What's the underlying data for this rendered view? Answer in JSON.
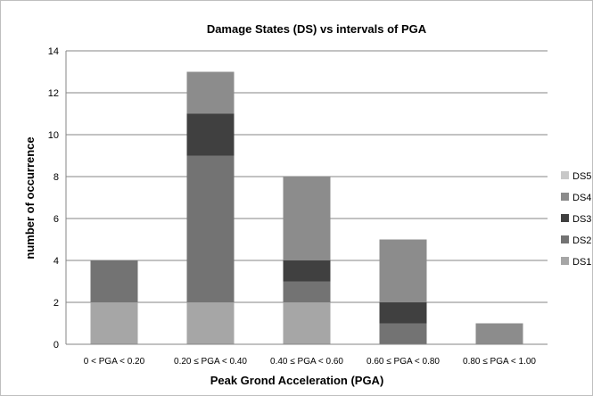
{
  "chart_data": {
    "type": "bar",
    "stacked": true,
    "title": "Damage States (DS) vs intervals of PGA",
    "xlabel": "Peak Grond Acceleration (PGA)",
    "ylabel": "number of occurrence",
    "ylim": [
      0,
      14
    ],
    "yticks": [
      0,
      2,
      4,
      6,
      8,
      10,
      12,
      14
    ],
    "grid": true,
    "legend_position": "right",
    "categories": [
      "0 < PGA < 0.20",
      "0.20 ≤ PGA < 0.40",
      "0.40 ≤ PGA < 0.60",
      "0.60 ≤ PGA < 0.80",
      "0.80 ≤ PGA < 1.00"
    ],
    "series": [
      {
        "name": "DS1",
        "color": "#a6a6a6",
        "values": [
          2,
          2,
          2,
          0,
          0
        ]
      },
      {
        "name": "DS2",
        "color": "#737373",
        "values": [
          2,
          7,
          1,
          1,
          0
        ]
      },
      {
        "name": "DS3",
        "color": "#404040",
        "values": [
          0,
          2,
          1,
          1,
          0
        ]
      },
      {
        "name": "DS4",
        "color": "#8c8c8c",
        "values": [
          0,
          2,
          4,
          3,
          1
        ]
      },
      {
        "name": "DS5",
        "color": "#c8c8c8",
        "values": [
          0,
          0,
          0,
          0,
          0
        ]
      }
    ],
    "legend_order": [
      "DS5",
      "DS4",
      "DS3",
      "DS2",
      "DS1"
    ]
  }
}
